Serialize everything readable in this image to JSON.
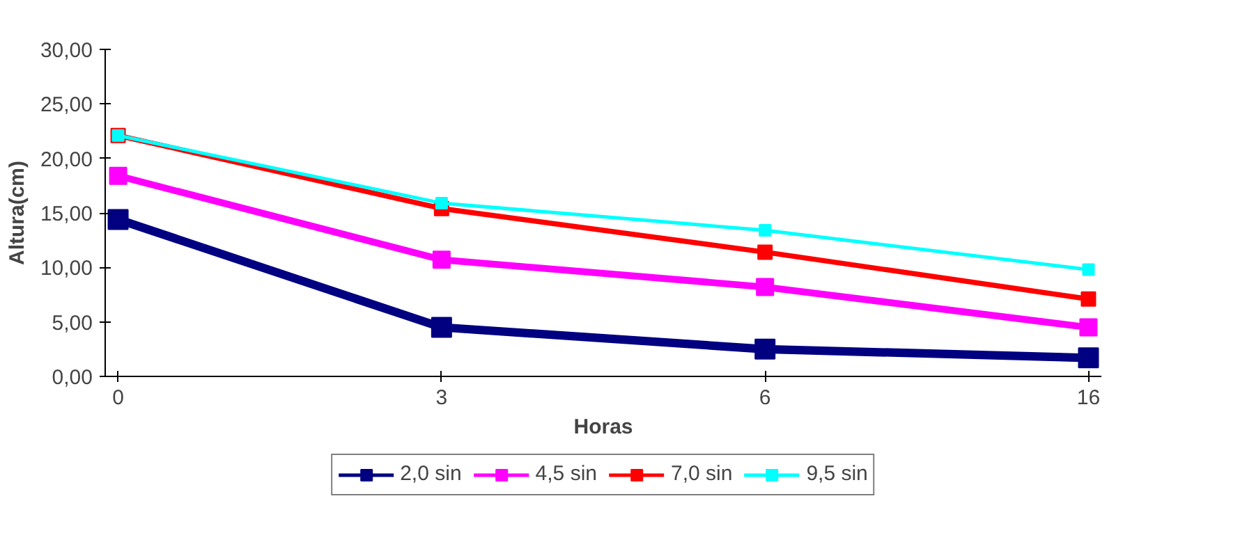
{
  "chart_data": {
    "type": "line",
    "xlabel": "Horas",
    "ylabel": "Altura(cm)",
    "categories": [
      "0",
      "3",
      "6",
      "16"
    ],
    "ylim": [
      0,
      30
    ],
    "yticks": [
      {
        "value": 0,
        "label": "0,00"
      },
      {
        "value": 5,
        "label": "5,00"
      },
      {
        "value": 10,
        "label": "10,00"
      },
      {
        "value": 15,
        "label": "15,00"
      },
      {
        "value": 20,
        "label": "20,00"
      },
      {
        "value": 25,
        "label": "25,00"
      },
      {
        "value": 30,
        "label": "30,00"
      }
    ],
    "grid": false,
    "legend": "bottom",
    "marker": "square",
    "line_style": "solid",
    "series": [
      {
        "name": "2,0 sin",
        "color": "#000080",
        "values": [
          14.4,
          4.5,
          2.5,
          1.7
        ]
      },
      {
        "name": "4,5 sin",
        "color": "#ff00ff",
        "values": [
          18.4,
          10.7,
          8.2,
          4.5
        ]
      },
      {
        "name": "7,0 sin",
        "color": "#ff0000",
        "values": [
          22.1,
          15.4,
          11.4,
          7.1
        ]
      },
      {
        "name": "9,5 sin",
        "color": "#00ffff",
        "values": [
          22.1,
          15.9,
          13.4,
          9.8
        ]
      }
    ]
  }
}
